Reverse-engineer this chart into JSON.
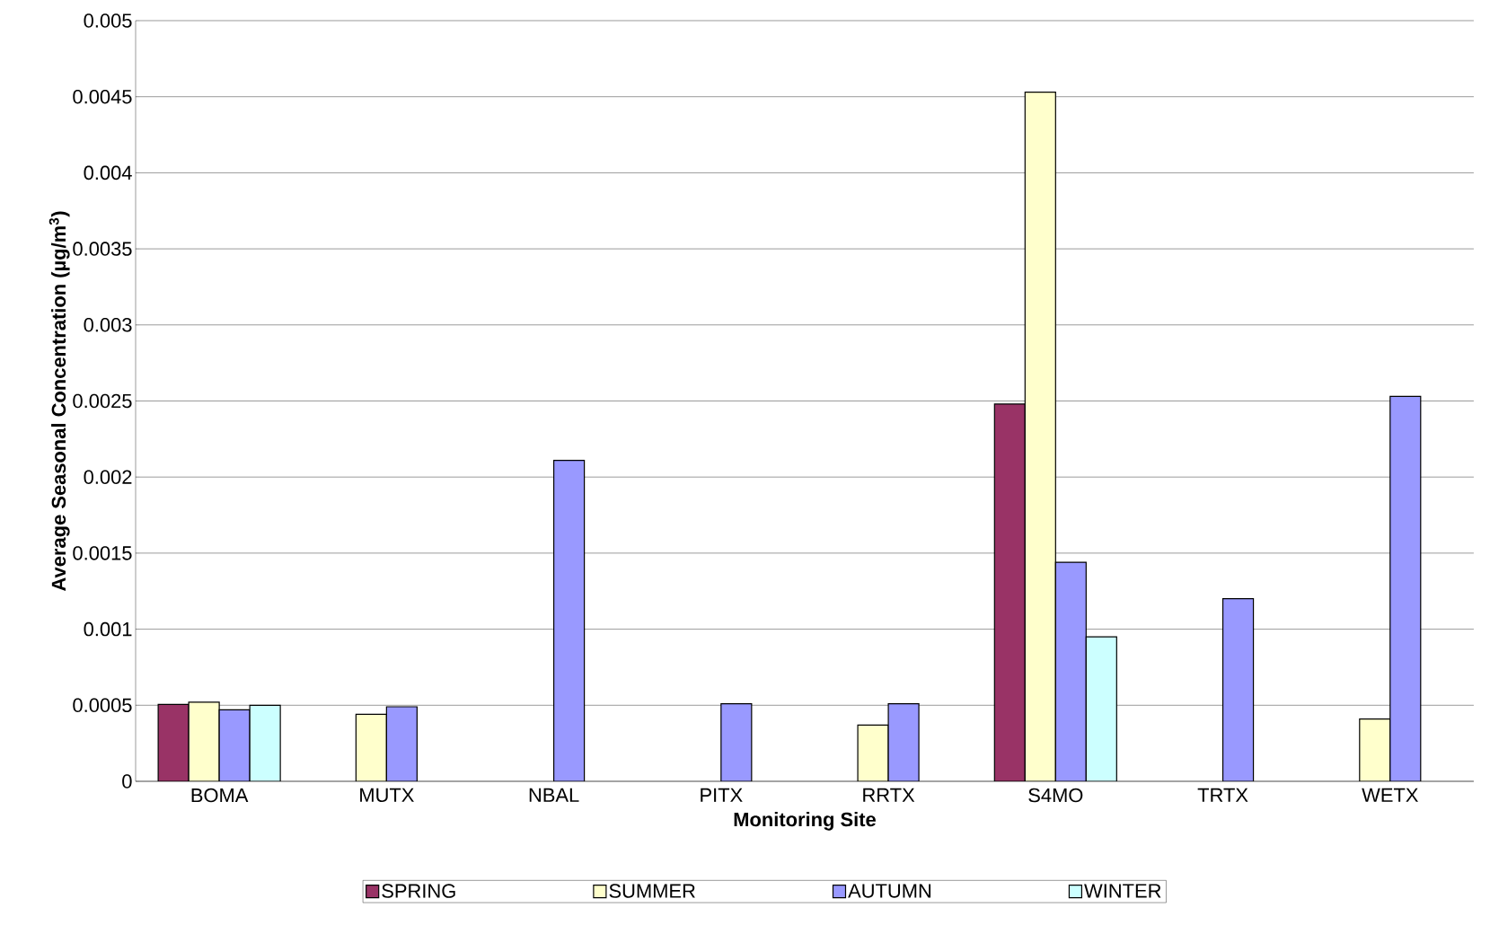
{
  "chart_data": {
    "type": "bar",
    "xlabel": "Monitoring Site",
    "ylabel": "Average Seasonal Concentration (µg/m$^{3}$)",
    "categories": [
      "BOMA",
      "MUTX",
      "NBAL",
      "PITX",
      "RRTX",
      "S4MO",
      "TRTX",
      "WETX"
    ],
    "series": [
      {
        "name": "SPRING",
        "color": "#993366",
        "values": [
          0.000506,
          null,
          null,
          null,
          null,
          0.00248,
          null,
          null
        ]
      },
      {
        "name": "SUMMER",
        "color": "#ffffcc",
        "values": [
          0.00052,
          0.00044,
          null,
          null,
          0.00037,
          0.00453,
          null,
          0.00041
        ]
      },
      {
        "name": "AUTUMN",
        "color": "#9999ff",
        "values": [
          0.00047,
          0.00049,
          0.00211,
          0.00051,
          0.00051,
          0.00144,
          0.0012,
          0.00253
        ]
      },
      {
        "name": "WINTER",
        "color": "#ccffff",
        "values": [
          0.0005,
          null,
          null,
          null,
          null,
          0.00095,
          null,
          null
        ]
      }
    ],
    "ylim": [
      0,
      0.005
    ],
    "yticks": [
      0,
      0.0005,
      0.001,
      0.0015,
      0.002,
      0.0025,
      0.003,
      0.0035,
      0.004,
      0.0045,
      0.005
    ],
    "grid": "y",
    "legend": "bottom"
  }
}
